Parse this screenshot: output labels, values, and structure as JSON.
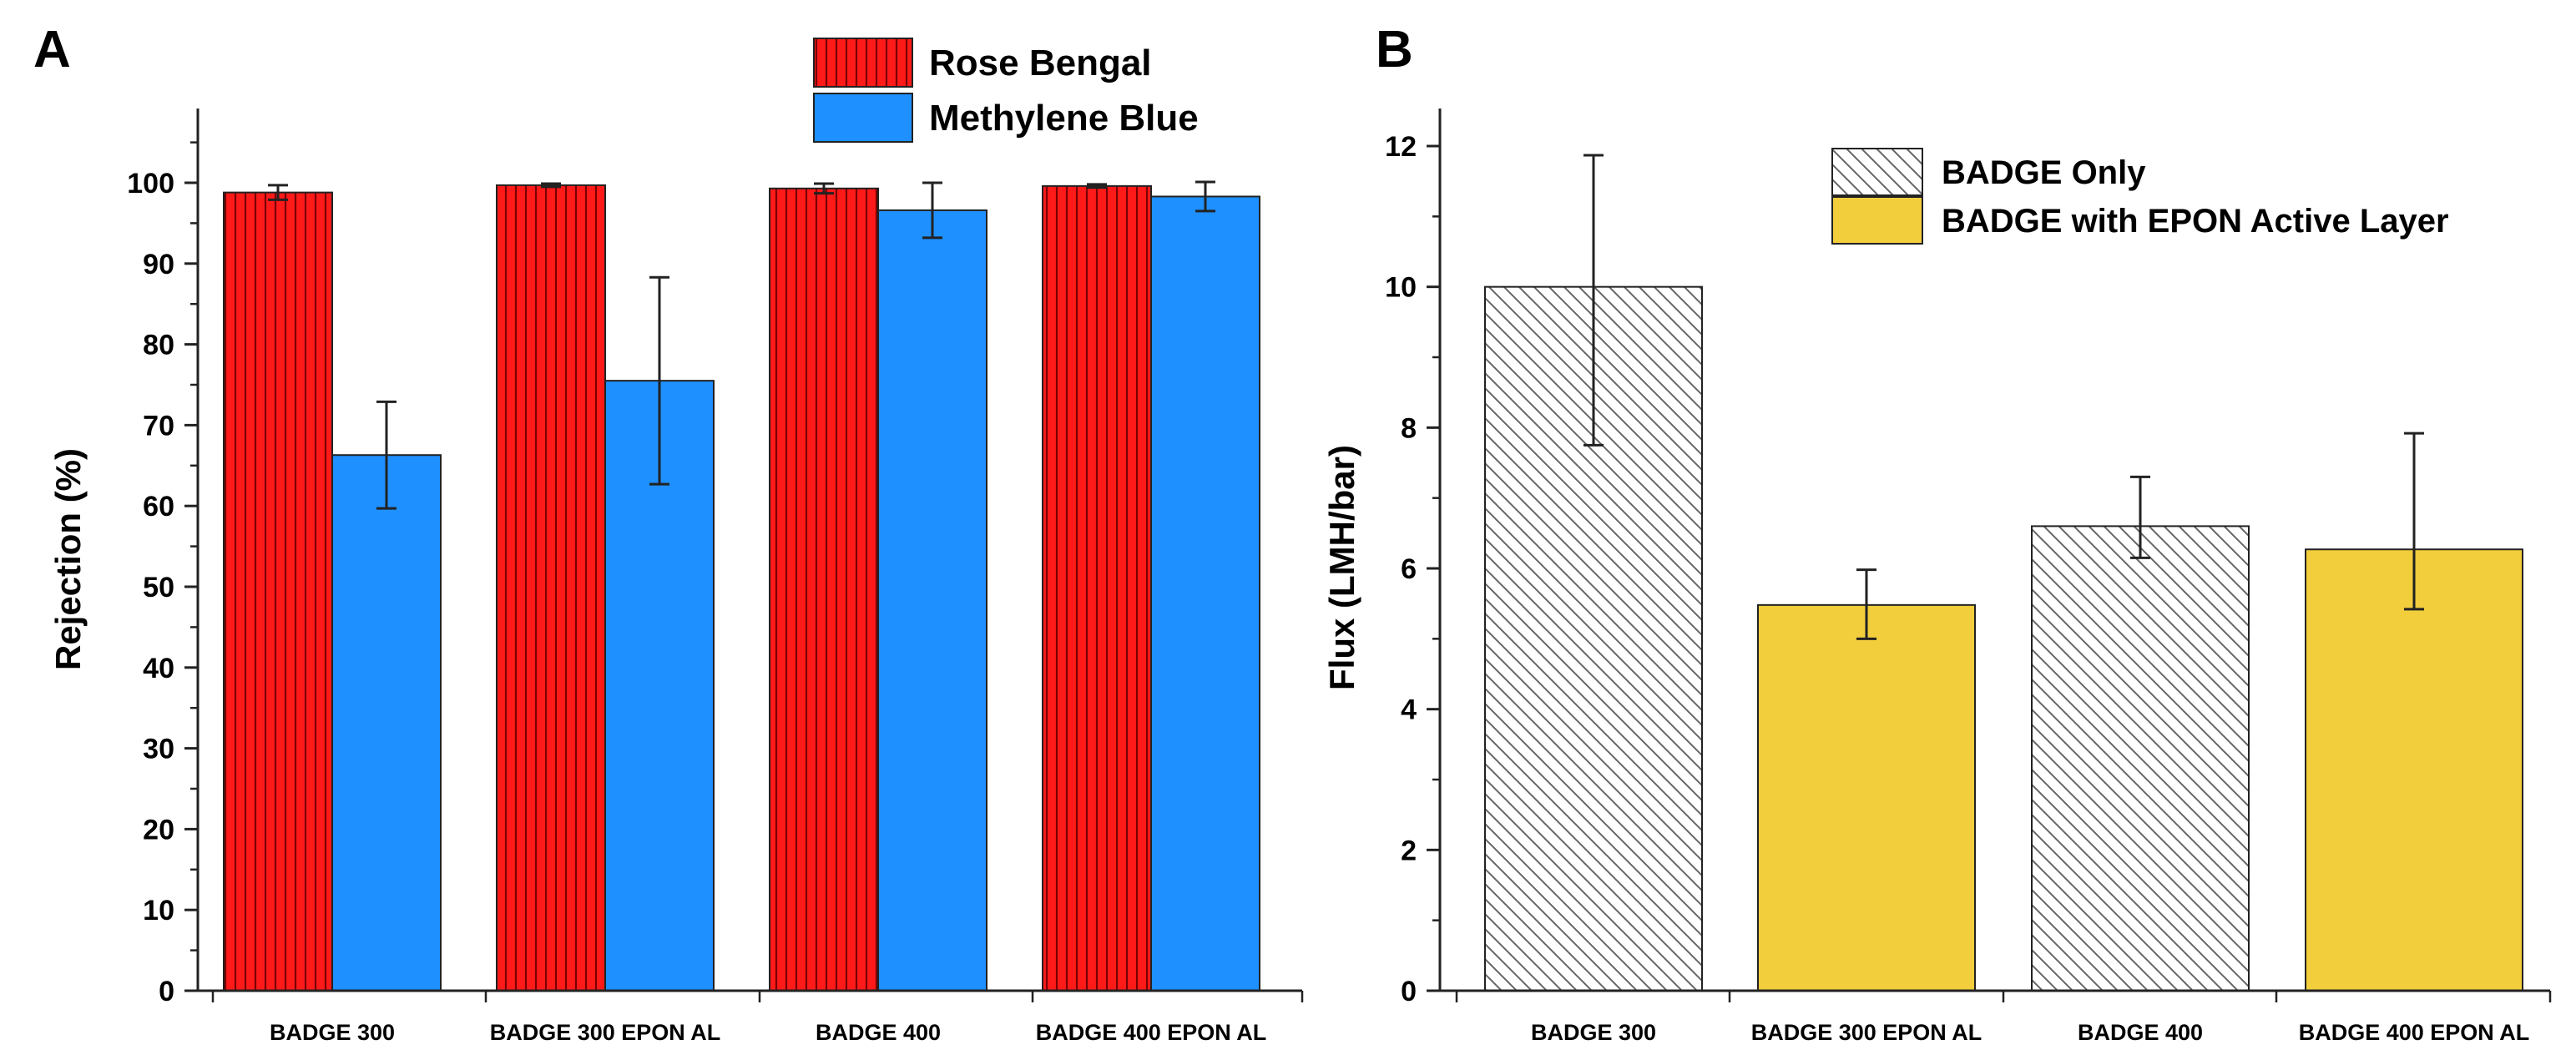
{
  "chart_data": [
    {
      "panel": "A",
      "type": "bar",
      "title": "",
      "xlabel": "",
      "ylabel": "Rejection (%)",
      "ylim": [
        0,
        110
      ],
      "yticks": [
        "0",
        "10",
        "20",
        "30",
        "40",
        "50",
        "60",
        "70",
        "80",
        "90",
        "100"
      ],
      "grid": false,
      "legend_position": "top-right",
      "categories": [
        "BADGE 300",
        "BADGE 300 EPON AL",
        "BADGE 400",
        "BADGE 400 EPON AL"
      ],
      "series": [
        {
          "name": "Rose Bengal",
          "color": "#ff0000",
          "pattern": "vertical-lines",
          "values": [
            98.8,
            99.7,
            99.3,
            99.6
          ],
          "errors": [
            0.9,
            0.2,
            0.6,
            0.2
          ]
        },
        {
          "name": "Methylene Blue",
          "color": "#1e90ff",
          "pattern": "solid",
          "values": [
            66.3,
            75.5,
            96.6,
            98.3
          ],
          "errors": [
            6.6,
            12.8,
            3.4,
            1.8
          ]
        }
      ]
    },
    {
      "panel": "B",
      "type": "bar",
      "title": "",
      "xlabel": "",
      "ylabel": "Flux (LMH/bar)",
      "ylim": [
        0,
        12.5
      ],
      "yticks": [
        "0",
        "2",
        "4",
        "6",
        "8",
        "10",
        "12"
      ],
      "grid": false,
      "legend_position": "top-right",
      "categories": [
        "BADGE 300",
        "BADGE 300 EPON AL",
        "BADGE 400",
        "BADGE 400 EPON AL"
      ],
      "legend": [
        {
          "name": "BADGE Only",
          "pattern": "diagonal-hatch",
          "color": "#ffffff"
        },
        {
          "name": "BADGE with EPON Active Layer",
          "pattern": "solid",
          "color": "#f2cd3c"
        }
      ],
      "values": [
        10.0,
        5.48,
        6.6,
        6.27
      ],
      "errors": [
        2.1,
        0.55,
        0.6,
        1.0
      ],
      "error_low": [
        2.25,
        0.48,
        0.45,
        0.85
      ],
      "error_high": [
        1.87,
        0.5,
        0.7,
        1.65
      ],
      "bar_styles": [
        "diagonal-hatch",
        "solid",
        "diagonal-hatch",
        "solid"
      ]
    }
  ]
}
